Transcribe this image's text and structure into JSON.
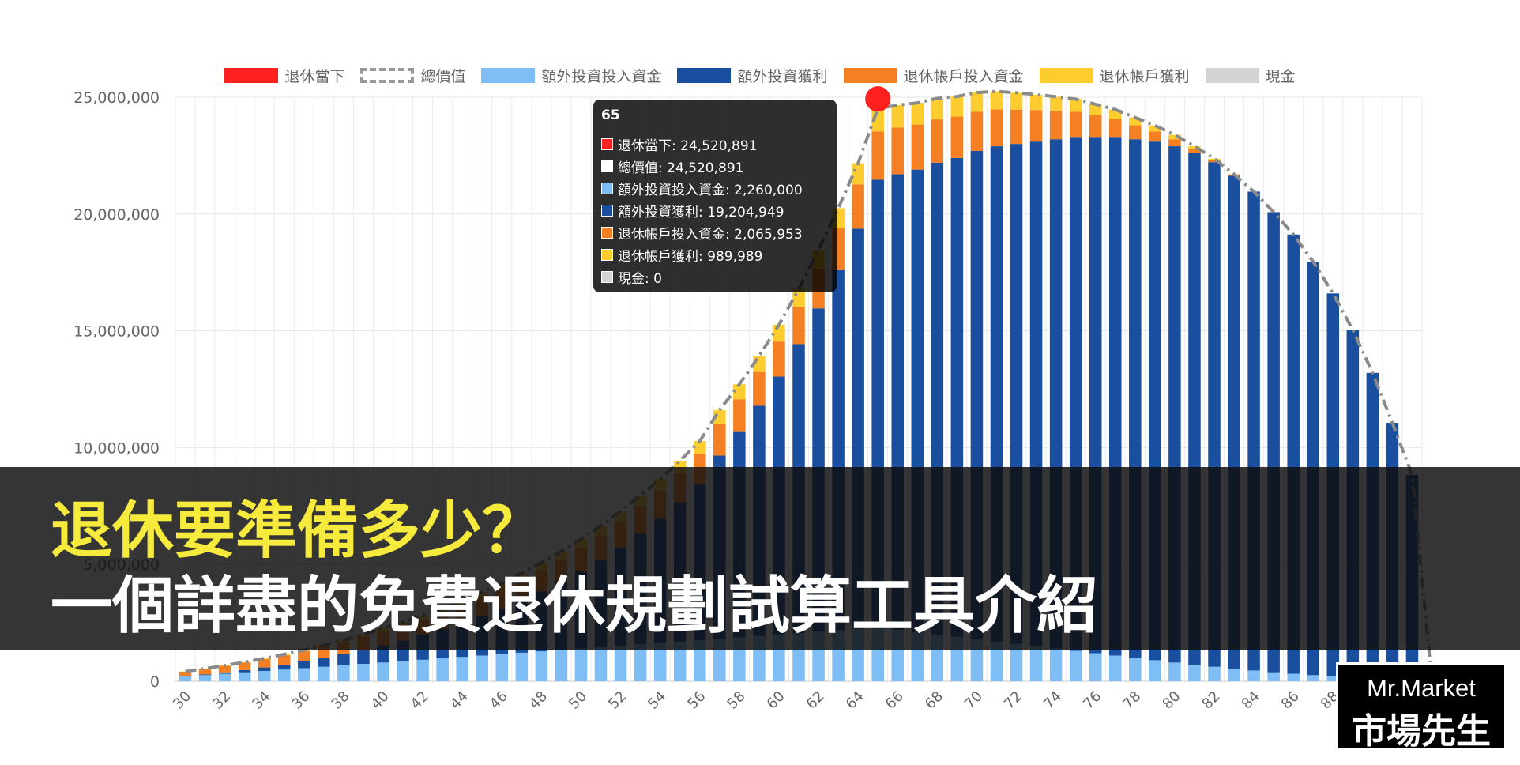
{
  "chart_data": {
    "type": "bar",
    "stacked": true,
    "categories": [
      30,
      31,
      32,
      33,
      34,
      35,
      36,
      37,
      38,
      39,
      40,
      41,
      42,
      43,
      44,
      45,
      46,
      47,
      48,
      49,
      50,
      51,
      52,
      53,
      54,
      55,
      56,
      57,
      58,
      59,
      60,
      61,
      62,
      63,
      64,
      65,
      66,
      67,
      68,
      69,
      70,
      71,
      72,
      73,
      74,
      75,
      76,
      77,
      78,
      79,
      80,
      81,
      82,
      83,
      84,
      85,
      86,
      87,
      88,
      89,
      90,
      91,
      92
    ],
    "x_tick_labels": [
      "30",
      "32",
      "34",
      "36",
      "38",
      "40",
      "42",
      "44",
      "46",
      "48",
      "50",
      "52",
      "54",
      "56",
      "58",
      "60",
      "62",
      "64",
      "66",
      "68",
      "70",
      "72",
      "74",
      "76",
      "78",
      "80",
      "82",
      "84",
      "86",
      "88",
      "90"
    ],
    "ylim": [
      0,
      25000000
    ],
    "y_tick_labels": [
      "0",
      "5,000,000",
      "10,000,000",
      "15,000,000",
      "20,000,000",
      "25,000,000"
    ],
    "y_ticks": [
      0,
      5000000,
      10000000,
      15000000,
      20000000,
      25000000
    ],
    "grid": true,
    "legend_position": "top",
    "series": [
      {
        "name": "退休當下",
        "color": "#ff2020",
        "kind": "point",
        "x": 65,
        "y": 24520891
      },
      {
        "name": "總價值",
        "color": "#999999",
        "kind": "dashed-line"
      },
      {
        "name": "額外投資投入資金",
        "color": "#7fbdf5",
        "values": [
          200000,
          260000,
          320000,
          380000,
          440000,
          500000,
          560000,
          620000,
          680000,
          740000,
          800000,
          860000,
          920000,
          980000,
          1040000,
          1100000,
          1160000,
          1220000,
          1280000,
          1340000,
          1400000,
          1460000,
          1520000,
          1580000,
          1640000,
          1700000,
          1760000,
          1820000,
          1880000,
          1940000,
          2000000,
          2060000,
          2120000,
          2180000,
          2240000,
          2260000,
          2200000,
          2100000,
          2000000,
          1900000,
          1800000,
          1700000,
          1600000,
          1500000,
          1400000,
          1300000,
          1200000,
          1100000,
          1000000,
          900000,
          800000,
          700000,
          620000,
          540000,
          460000,
          380000,
          320000,
          260000,
          200000,
          140000,
          100000,
          60000,
          30000
        ]
      },
      {
        "name": "額外投資獲利",
        "color": "#1a4fa0",
        "values": [
          10000,
          30000,
          60000,
          100000,
          150000,
          210000,
          290000,
          380000,
          480000,
          600000,
          740000,
          890000,
          1060000,
          1250000,
          1460000,
          1690000,
          1950000,
          2240000,
          2560000,
          2910000,
          3300000,
          3730000,
          4210000,
          4740000,
          5320000,
          5960000,
          6660000,
          7840000,
          8790000,
          9850000,
          11040000,
          12370000,
          13840000,
          15420000,
          17130000,
          19204949,
          19500000,
          19800000,
          20200000,
          20500000,
          20900000,
          21200000,
          21400000,
          21600000,
          21800000,
          22000000,
          22100000,
          22200000,
          22200000,
          22200000,
          22100000,
          21900000,
          21600000,
          21100000,
          20500000,
          19700000,
          18800000,
          17700000,
          16400000,
          14900000,
          13100000,
          11000000,
          8800000
        ]
      },
      {
        "name": "退休帳戶投入資金",
        "color": "#f58024",
        "values": [
          200000,
          240000,
          280000,
          320000,
          360000,
          400000,
          440000,
          480000,
          520000,
          560000,
          600000,
          640000,
          680000,
          720000,
          760000,
          800000,
          840000,
          880000,
          920000,
          960000,
          1000000,
          1050000,
          1100000,
          1150000,
          1200000,
          1250000,
          1300000,
          1350000,
          1400000,
          1450000,
          1500000,
          1600000,
          1700000,
          1800000,
          1900000,
          2065953,
          2000000,
          1930000,
          1850000,
          1770000,
          1680000,
          1580000,
          1470000,
          1350000,
          1220000,
          1080000,
          930000,
          770000,
          600000,
          430000,
          300000,
          180000,
          90000,
          40000,
          0,
          0,
          0,
          0,
          0,
          0,
          0,
          0,
          0
        ]
      },
      {
        "name": "退休帳戶獲利",
        "color": "#fdcc2f",
        "values": [
          5000,
          10000,
          15000,
          20000,
          30000,
          40000,
          50000,
          60000,
          80000,
          100000,
          120000,
          140000,
          160000,
          180000,
          200000,
          230000,
          260000,
          290000,
          320000,
          350000,
          380000,
          410000,
          440000,
          470000,
          500000,
          530000,
          560000,
          600000,
          640000,
          680000,
          720000,
          760000,
          800000,
          850000,
          900000,
          989989,
          960000,
          930000,
          900000,
          860000,
          820000,
          770000,
          720000,
          660000,
          600000,
          540000,
          470000,
          400000,
          330000,
          260000,
          190000,
          120000,
          60000,
          20000,
          0,
          0,
          0,
          0,
          0,
          0,
          0,
          0,
          0
        ]
      },
      {
        "name": "現金",
        "color": "#d4d4d4",
        "values": [
          0,
          0,
          0,
          0,
          0,
          0,
          0,
          0,
          0,
          0,
          0,
          0,
          0,
          0,
          0,
          0,
          0,
          0,
          0,
          0,
          0,
          0,
          0,
          0,
          0,
          0,
          0,
          0,
          0,
          0,
          0,
          0,
          0,
          0,
          0,
          0,
          0,
          0,
          0,
          0,
          0,
          0,
          0,
          0,
          0,
          0,
          0,
          0,
          0,
          0,
          0,
          0,
          0,
          0,
          0,
          0,
          0,
          0,
          0,
          0,
          0,
          0,
          0
        ]
      }
    ],
    "tooltip": {
      "title": "65",
      "rows": [
        {
          "label": "退休當下: 24,520,891",
          "color": "#ff2020"
        },
        {
          "label": "總價值: 24,520,891",
          "color": "#ffffff"
        },
        {
          "label": "額外投資投入資金: 2,260,000",
          "color": "#7fbdf5"
        },
        {
          "label": "額外投資獲利: 19,204,949",
          "color": "#1a4fa0"
        },
        {
          "label": "退休帳戶投入資金: 2,065,953",
          "color": "#f58024"
        },
        {
          "label": "退休帳戶獲利: 989,989",
          "color": "#fdcc2f"
        },
        {
          "label": "現金: 0",
          "color": "#d4d4d4"
        }
      ]
    }
  },
  "banner": {
    "line1": "退休要準備多少？",
    "line2": "一個詳盡的免費退休規劃試算工具介紹"
  },
  "logo": {
    "line1": "Mr.Market",
    "line2": "市場先生"
  }
}
